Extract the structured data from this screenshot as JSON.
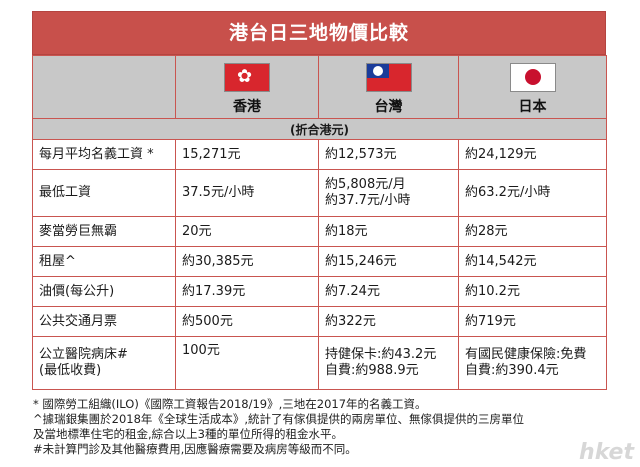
{
  "title": "港台日三地物價比較",
  "countries": [
    {
      "name": "香港",
      "flag": "hong-kong-flag-icon"
    },
    {
      "name": "台灣",
      "flag": "taiwan-flag-icon"
    },
    {
      "name": "日本",
      "flag": "japan-flag-icon"
    }
  ],
  "subheader": "(折合港元)",
  "rows": [
    {
      "label": "每月平均名義工資 *",
      "hk": "15,271元",
      "tw": "約12,573元",
      "jp": "約24,129元"
    },
    {
      "label": "最低工資",
      "hk": "37.5元/小時",
      "tw": "約5,808元/月",
      "tw2": "約37.7元/小時",
      "jp": "約63.2元/小時"
    },
    {
      "label": "麥當勞巨無霸",
      "hk": "20元",
      "tw": "約18元",
      "jp": "約28元"
    },
    {
      "label": "租屋^",
      "hk": "約30,385元",
      "tw": "約15,246元",
      "jp": "約14,542元"
    },
    {
      "label": "油價(每公升)",
      "hk": "約17.39元",
      "tw": "約7.24元",
      "jp": "約10.2元"
    },
    {
      "label": "公共交通月票",
      "hk": "約500元",
      "tw": "約322元",
      "jp": "約719元"
    },
    {
      "label": "公立醫院病床#",
      "label2": "(最低收費)",
      "hk": "100元",
      "tw": "持健保卡:約43.2元",
      "tw2": "自費:約988.9元",
      "jp": "有國民健康保險:免費",
      "jp2": "自費:約390.4元"
    }
  ],
  "notes": [
    "* 國際勞工組織(ILO)《國際工資報告2018/19》,三地在2017年的名義工資。",
    "^據瑞銀集團於2018年《全球生活成本》,統計了有傢俱提供的兩房單位、無傢俱提供的三房單位",
    "及當地標準住宅的租金,綜合以上3種的單位所得的租金水平。",
    "#未計算門診及其他醫療費用,因應醫療需要及病房等級而不同。"
  ],
  "watermark": "hket"
}
